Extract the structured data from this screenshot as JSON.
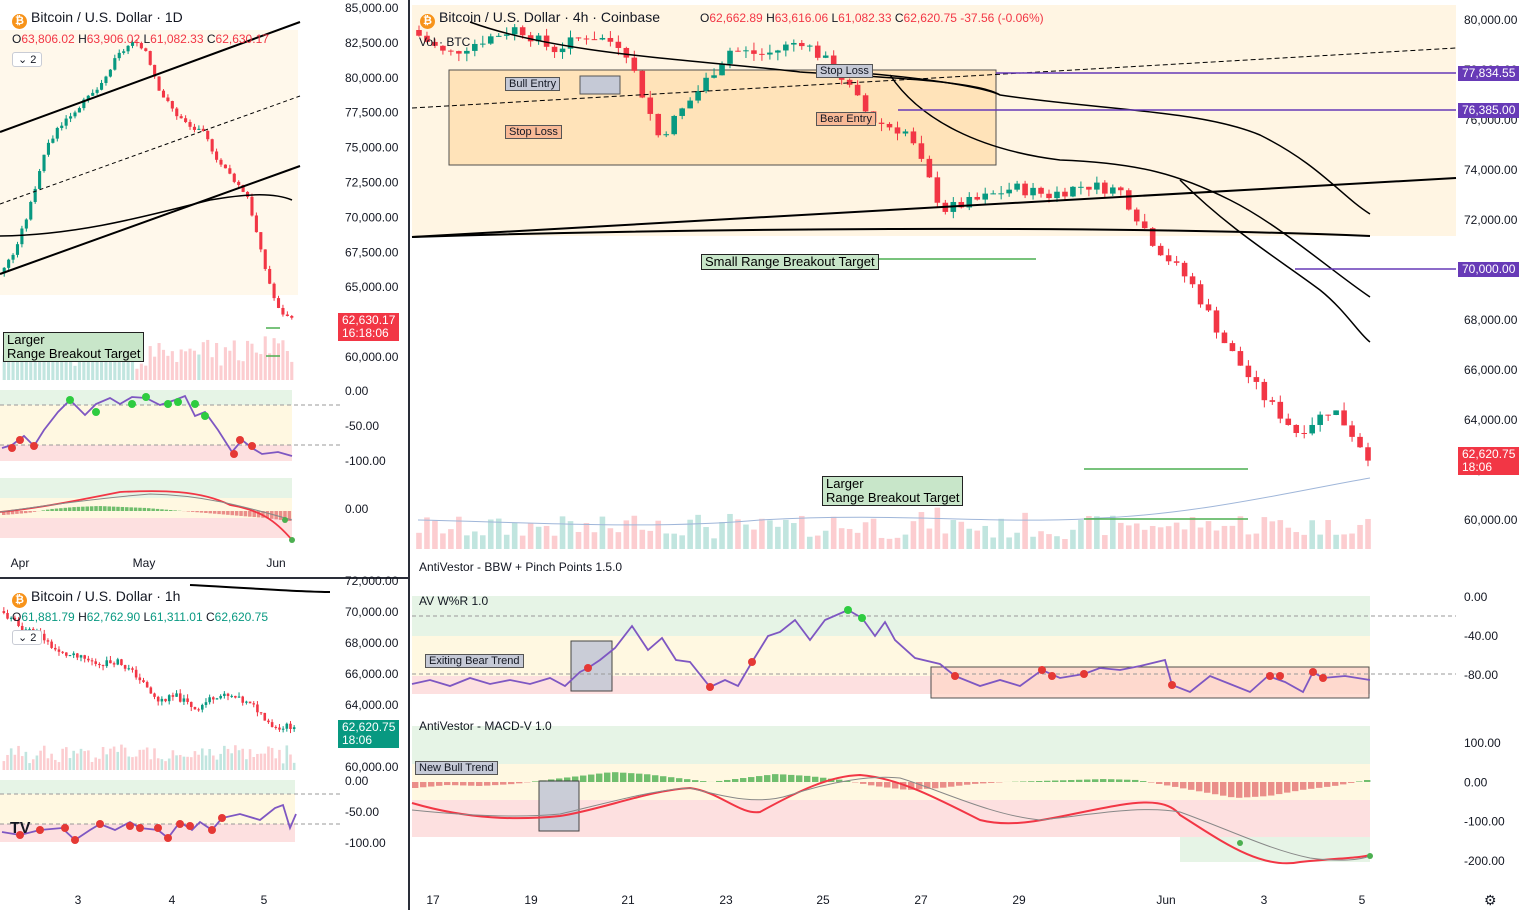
{
  "daily": {
    "title": "Bitcoin / U.S. Dollar · 1D",
    "ohlc": {
      "o": "63,806.02",
      "h": "63,906.02",
      "l": "61,082.33",
      "c": "62,630.17"
    },
    "count": "2",
    "price_badge": "62,630.17",
    "countdown": "16:18:06",
    "target_label": "Larger\nRange Breakout Target",
    "y_ticks": [
      "85,000.00",
      "82,500.00",
      "80,000.00",
      "77,500.00",
      "75,000.00",
      "72,500.00",
      "70,000.00",
      "67,500.00",
      "65,000.00",
      "62,500.00",
      "60,000.00"
    ],
    "wr_ticks": [
      "0.00",
      "-50.00",
      "-100.00"
    ],
    "macd_ticks": [
      "0.00"
    ],
    "x_ticks": [
      "Apr",
      "May",
      "Jun"
    ]
  },
  "hourly": {
    "title": "Bitcoin / U.S. Dollar · 1h",
    "ohlc": {
      "o": "61,881.79",
      "h": "62,762.90",
      "l": "61,311.01",
      "c": "62,620.75"
    },
    "count": "2",
    "price_badge": "62,620.75",
    "countdown": "18:06",
    "y_ticks": [
      "72,000.00",
      "70,000.00",
      "68,000.00",
      "66,000.00",
      "64,000.00",
      "62,000.00",
      "60,000.00"
    ],
    "wr_ticks": [
      "0.00",
      "-50.00",
      "-100.00"
    ],
    "x_ticks": [
      "3",
      "4",
      "5"
    ]
  },
  "main": {
    "title": "Bitcoin / U.S. Dollar · 4h · Coinbase",
    "ohlc": {
      "o": "62,662.89",
      "h": "63,616.06",
      "l": "61,082.33",
      "c": "62,620.75",
      "chg": "-37.56 (-0.06%)"
    },
    "vol_label": "Vol · BTC",
    "y_ticks": [
      "80,000.00",
      "78,000.00",
      "76,000.00",
      "74,000.00",
      "72,000.00",
      "70,000.00",
      "68,000.00",
      "66,000.00",
      "64,000.00",
      "62,000.00",
      "60,000.00"
    ],
    "level_badges": [
      "77,834.55",
      "76,385.00",
      "70,000.00"
    ],
    "price_badge": "62,620.75",
    "countdown": "18:06",
    "tags": {
      "bull_entry": "Bull Entry",
      "stop_loss_low": "Stop Loss",
      "stop_loss_high": "Stop Loss",
      "bear_entry": "Bear Entry"
    },
    "small_target": "Small Range Breakout Target",
    "large_target": "Larger\nRange Breakout Target",
    "bbw_title": "AntiVestor - BBW + Pinch Points 1.5.0",
    "wr_title": "AV W%R 1.0",
    "wr_note": "Exiting Bear Trend",
    "wr_ticks": [
      "0.00",
      "-40.00",
      "-80.00"
    ],
    "macd_title": "AntiVestor - MACD-V 1.0",
    "macd_note": "New Bull Trend",
    "macd_ticks": [
      "100.00",
      "0.00",
      "-100.00",
      "-200.00"
    ],
    "x_ticks": [
      "17",
      "19",
      "21",
      "23",
      "25",
      "27",
      "29",
      "Jun",
      "3",
      "5"
    ]
  },
  "colors": {
    "up": "#089981",
    "down": "#f23645",
    "wr_line": "#7e57c2",
    "level": "#673ab7",
    "target_bg": "#c8e6c9"
  },
  "chart_data": [
    {
      "type": "line",
      "title": "Bitcoin / U.S. Dollar · 4h · Coinbase",
      "x": [
        "17",
        "19",
        "21",
        "23",
        "25",
        "27",
        "29",
        "Jun",
        "3",
        "5"
      ],
      "series": [
        {
          "values": [
            79500,
            78400,
            79600,
            75500,
            78700,
            75800,
            72900,
            72300,
            64500,
            62620
          ]
        }
      ],
      "ylim": [
        59000,
        80500
      ]
    },
    {
      "type": "line",
      "title": "Bitcoin / U.S. Dollar · 1D",
      "x": [
        "Apr",
        "May",
        "Jun"
      ],
      "series": [
        {
          "values": [
            66000,
            80000,
            62630
          ]
        }
      ],
      "ylim": [
        59000,
        85000
      ]
    },
    {
      "type": "line",
      "title": "Bitcoin / U.S. Dollar · 1h",
      "x": [
        "3",
        "4",
        "5"
      ],
      "series": [
        {
          "values": [
            68800,
            65200,
            62620
          ]
        }
      ],
      "ylim": [
        59500,
        72000
      ]
    }
  ]
}
